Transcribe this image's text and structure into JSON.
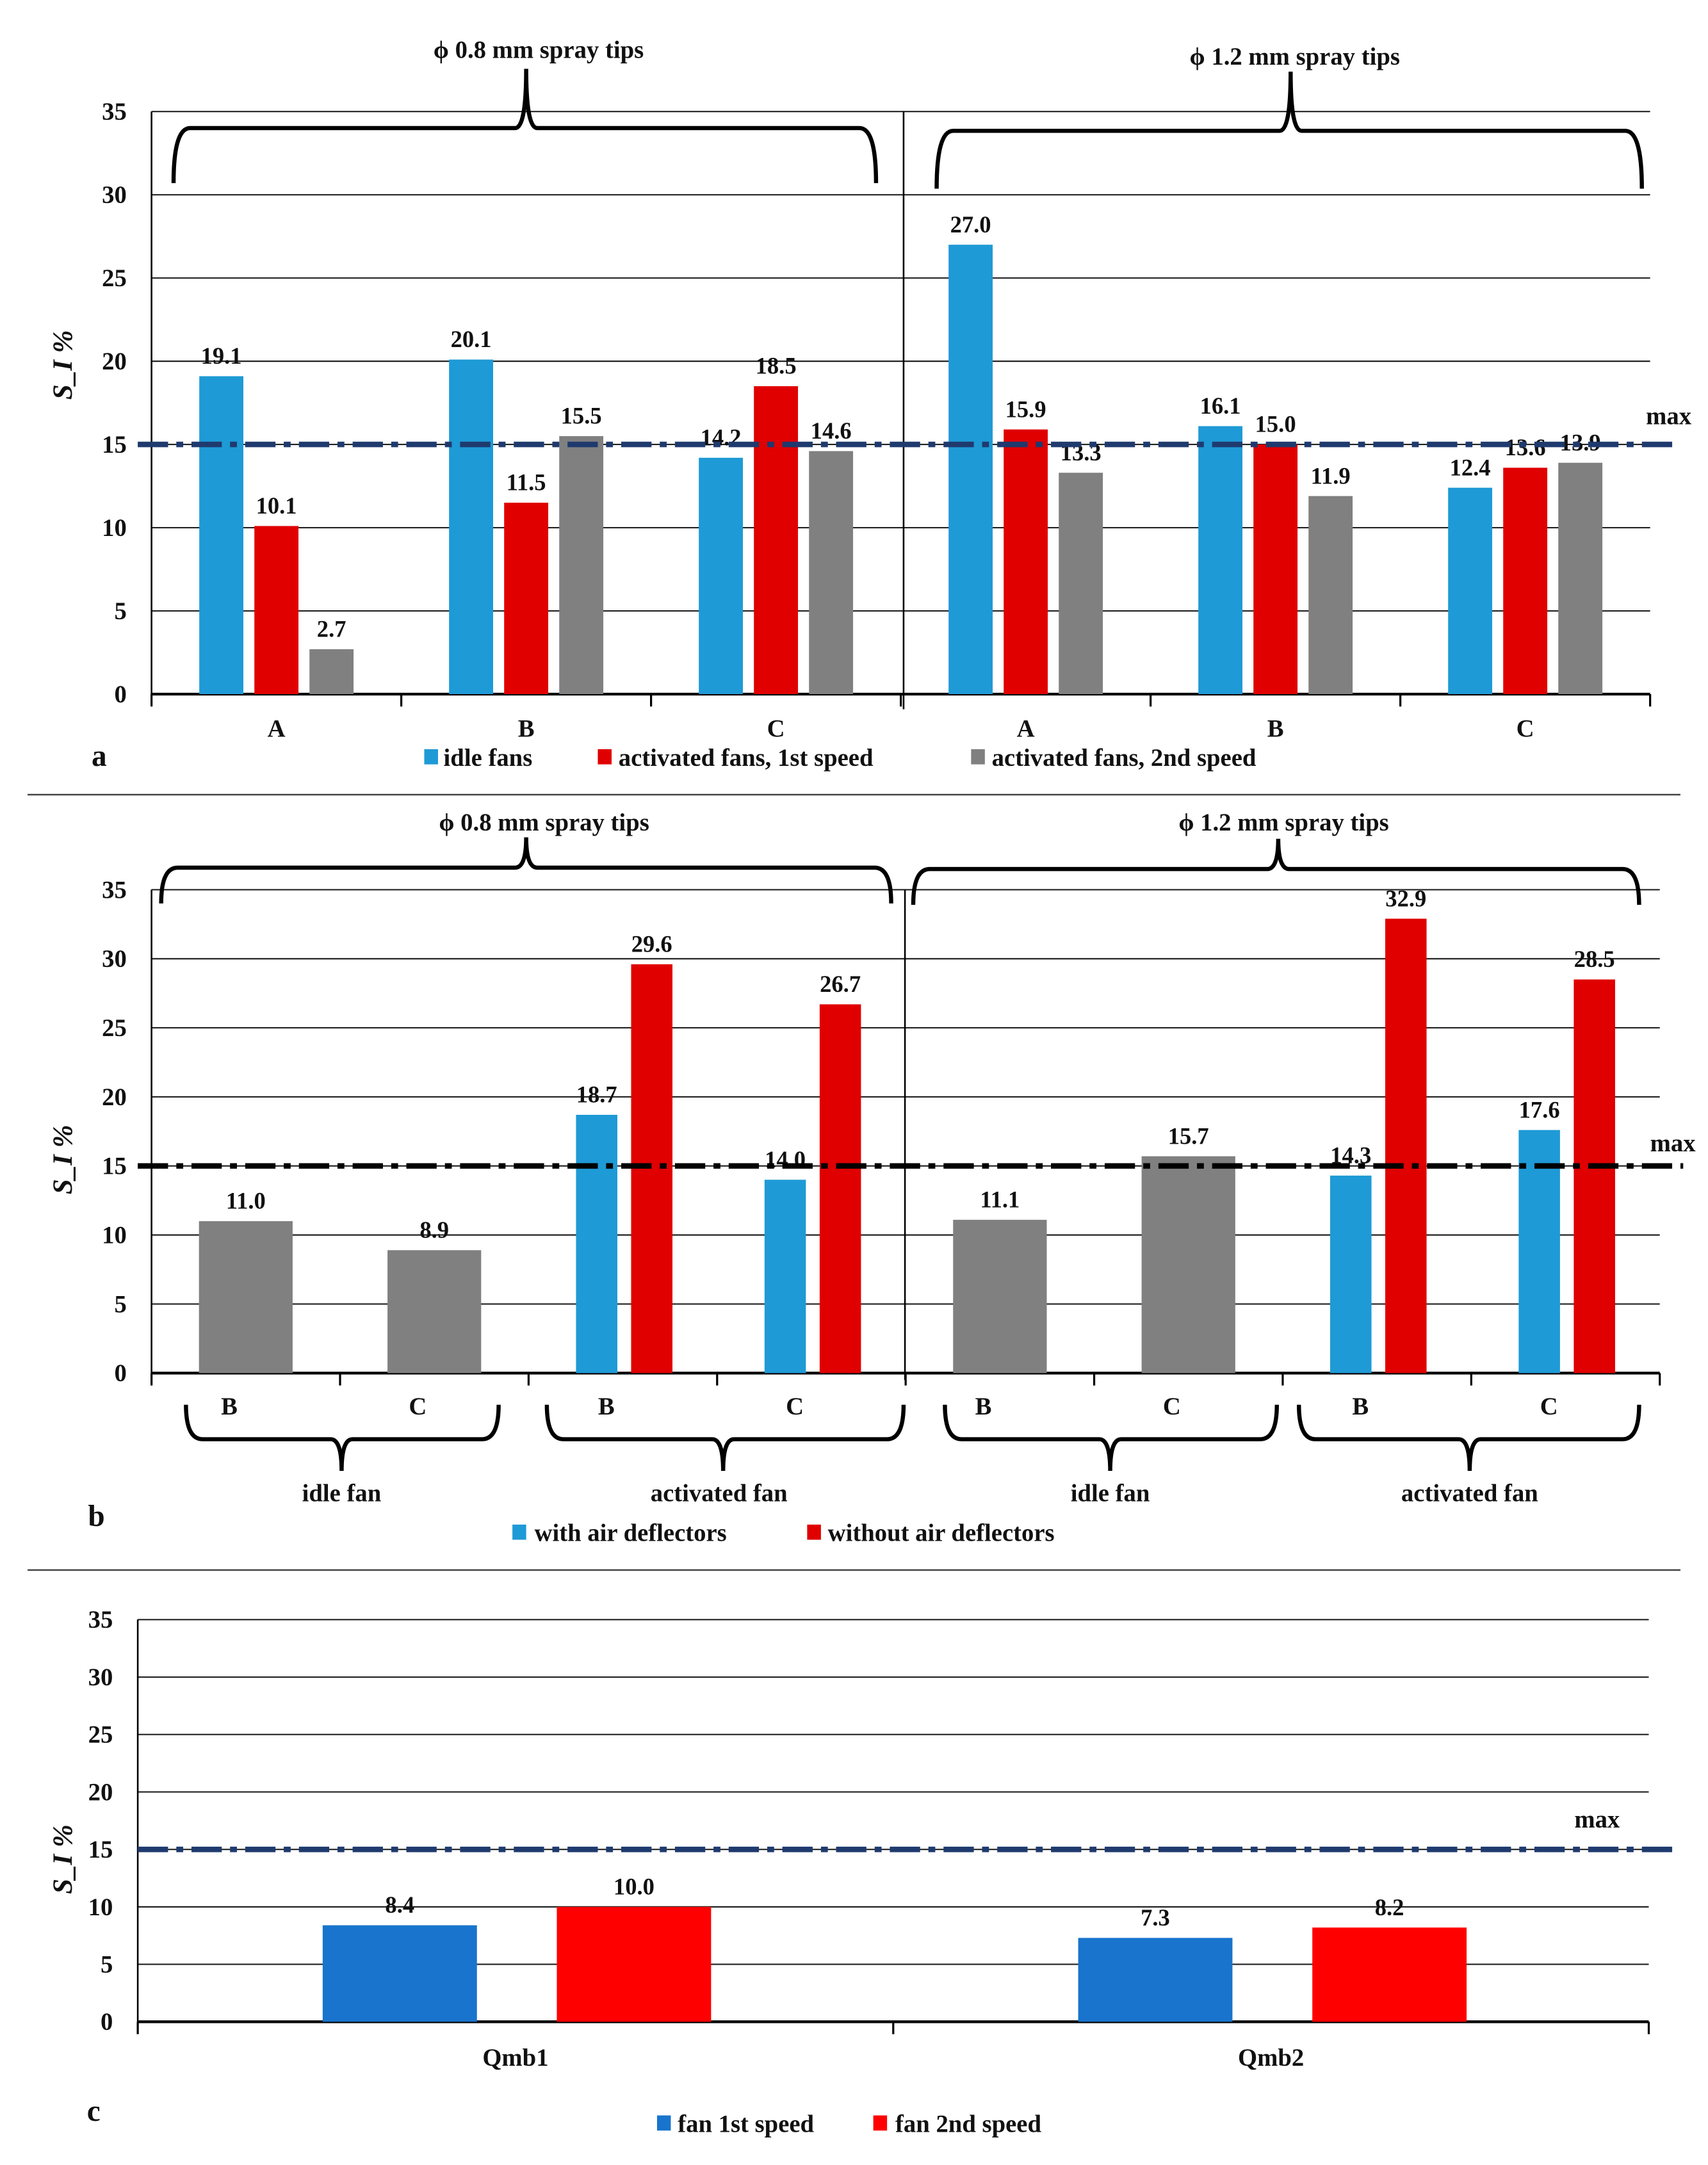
{
  "chart_data": [
    {
      "panel_label": "a",
      "type": "bar",
      "ylabel": "S_I %",
      "ylim": [
        0,
        35
      ],
      "yticks": [
        0,
        5,
        10,
        15,
        20,
        25,
        30,
        35
      ],
      "grid": true,
      "threshold": {
        "value": 15,
        "label": "max",
        "color": "#1f3a6e"
      },
      "group_labels": [
        "ϕ 0.8 mm spray tips",
        "ϕ 1.2 mm spray tips"
      ],
      "categories": [
        "A",
        "B",
        "C",
        "A",
        "B",
        "C"
      ],
      "series": [
        {
          "name": "idle fans",
          "color": "#1e9ad6",
          "values": [
            19.1,
            20.1,
            14.2,
            27.0,
            16.1,
            12.4
          ]
        },
        {
          "name": "activated fans, 1st speed",
          "color": "#e00000",
          "values": [
            10.1,
            11.5,
            18.5,
            15.9,
            15.0,
            13.6
          ]
        },
        {
          "name": "activated fans, 2nd speed",
          "color": "#808080",
          "values": [
            2.7,
            15.5,
            14.6,
            13.3,
            11.9,
            13.9
          ]
        }
      ],
      "legend": "bottom"
    },
    {
      "panel_label": "b",
      "type": "bar",
      "ylabel": "S_I %",
      "ylim": [
        0,
        35
      ],
      "yticks": [
        0,
        5,
        10,
        15,
        20,
        25,
        30,
        35
      ],
      "grid": true,
      "threshold": {
        "value": 15,
        "label": "max",
        "color": "#000000"
      },
      "group_labels": [
        "ϕ 0.8 mm spray tips",
        "ϕ 1.2 mm spray tips"
      ],
      "subgroup_labels": [
        "idle fan",
        "activated fan",
        "idle fan",
        "activated fan"
      ],
      "categories": [
        "B",
        "C",
        "B",
        "C",
        "B",
        "C",
        "B",
        "C"
      ],
      "series": [
        {
          "name": "",
          "color": "#808080",
          "legend": false,
          "values": [
            11.0,
            8.9,
            null,
            null,
            11.1,
            15.7,
            null,
            null
          ]
        },
        {
          "name": "with air deflectors",
          "color": "#1e9ad6",
          "values": [
            null,
            null,
            18.7,
            14.0,
            null,
            null,
            14.3,
            17.6
          ]
        },
        {
          "name": "without air deflectors",
          "color": "#e00000",
          "values": [
            null,
            null,
            29.6,
            26.7,
            null,
            null,
            32.9,
            28.5
          ]
        }
      ],
      "legend": "bottom"
    },
    {
      "panel_label": "c",
      "type": "bar",
      "ylabel": "S_I %",
      "ylim": [
        0,
        35
      ],
      "yticks": [
        0,
        5,
        10,
        15,
        20,
        25,
        30,
        35
      ],
      "grid": true,
      "threshold": {
        "value": 15,
        "label": "max",
        "color": "#1f3a6e"
      },
      "categories": [
        "Qmb1",
        "Qmb2"
      ],
      "series": [
        {
          "name": "fan 1st speed",
          "color": "#1874cd",
          "values": [
            8.4,
            7.3
          ]
        },
        {
          "name": "fan 2nd speed",
          "color": "#ff0000",
          "values": [
            10.0,
            8.2
          ]
        }
      ],
      "legend": "bottom"
    }
  ]
}
